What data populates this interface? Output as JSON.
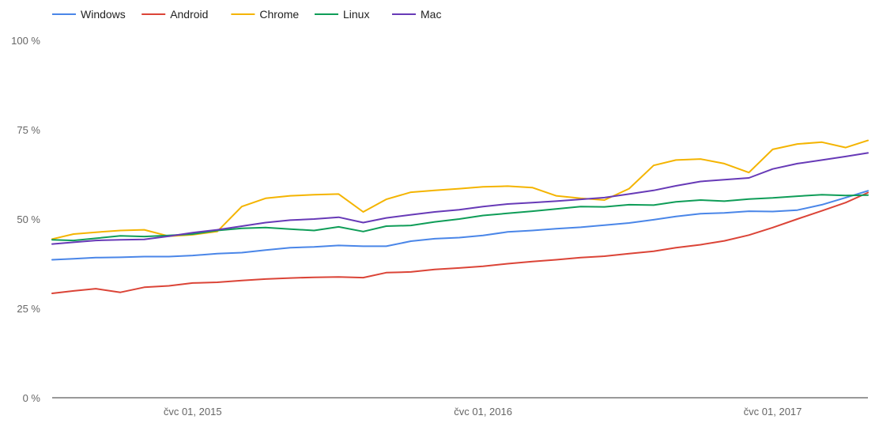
{
  "chart_data": {
    "type": "line",
    "title": "",
    "xlabel": "",
    "ylabel": "",
    "ylim": [
      0,
      100
    ],
    "y_ticks": [
      "0 %",
      "25 %",
      "50 %",
      "75 %",
      "100 %"
    ],
    "y_tick_values": [
      0,
      25,
      50,
      75,
      100
    ],
    "x_range": [
      "2015-01-05",
      "2017-10-29"
    ],
    "x_ticks": [
      {
        "label": "čvc 01, 2015",
        "date": "2015-07-01"
      },
      {
        "label": "čvc 01, 2016",
        "date": "2016-07-01"
      },
      {
        "label": "čvc 01, 2017",
        "date": "2017-07-01"
      }
    ],
    "grid": false,
    "legend_position": "top-left",
    "series": [
      {
        "name": "Windows",
        "color": "#4a86e8",
        "points": [
          [
            "2015-01-05",
            38.6
          ],
          [
            "2015-02-01",
            38.9
          ],
          [
            "2015-03-01",
            39.2
          ],
          [
            "2015-04-01",
            39.3
          ],
          [
            "2015-05-01",
            39.5
          ],
          [
            "2015-06-01",
            39.5
          ],
          [
            "2015-07-01",
            39.8
          ],
          [
            "2015-08-01",
            40.3
          ],
          [
            "2015-09-01",
            40.6
          ],
          [
            "2015-10-01",
            41.3
          ],
          [
            "2015-11-01",
            42.0
          ],
          [
            "2015-12-01",
            42.2
          ],
          [
            "2016-01-01",
            42.6
          ],
          [
            "2016-02-01",
            42.4
          ],
          [
            "2016-03-01",
            42.4
          ],
          [
            "2016-04-01",
            43.8
          ],
          [
            "2016-05-01",
            44.5
          ],
          [
            "2016-06-01",
            44.8
          ],
          [
            "2016-07-01",
            45.4
          ],
          [
            "2016-08-01",
            46.4
          ],
          [
            "2016-09-01",
            46.8
          ],
          [
            "2016-10-01",
            47.3
          ],
          [
            "2016-11-01",
            47.7
          ],
          [
            "2016-12-01",
            48.3
          ],
          [
            "2017-01-01",
            48.9
          ],
          [
            "2017-02-01",
            49.8
          ],
          [
            "2017-03-01",
            50.7
          ],
          [
            "2017-04-01",
            51.5
          ],
          [
            "2017-05-01",
            51.7
          ],
          [
            "2017-06-01",
            52.2
          ],
          [
            "2017-07-01",
            52.1
          ],
          [
            "2017-08-01",
            52.5
          ],
          [
            "2017-09-01",
            54.0
          ],
          [
            "2017-10-01",
            56.0
          ],
          [
            "2017-10-29",
            57.9
          ]
        ]
      },
      {
        "name": "Android",
        "color": "#db4437",
        "points": [
          [
            "2015-01-05",
            29.2
          ],
          [
            "2015-02-01",
            29.9
          ],
          [
            "2015-03-01",
            30.5
          ],
          [
            "2015-04-01",
            29.5
          ],
          [
            "2015-05-01",
            30.9
          ],
          [
            "2015-06-01",
            31.3
          ],
          [
            "2015-07-01",
            32.1
          ],
          [
            "2015-08-01",
            32.3
          ],
          [
            "2015-09-01",
            32.8
          ],
          [
            "2015-10-01",
            33.2
          ],
          [
            "2015-11-01",
            33.5
          ],
          [
            "2015-12-01",
            33.7
          ],
          [
            "2016-01-01",
            33.8
          ],
          [
            "2016-02-01",
            33.6
          ],
          [
            "2016-03-01",
            35.0
          ],
          [
            "2016-04-01",
            35.2
          ],
          [
            "2016-05-01",
            35.9
          ],
          [
            "2016-06-01",
            36.3
          ],
          [
            "2016-07-01",
            36.8
          ],
          [
            "2016-08-01",
            37.5
          ],
          [
            "2016-09-01",
            38.1
          ],
          [
            "2016-10-01",
            38.6
          ],
          [
            "2016-11-01",
            39.2
          ],
          [
            "2016-12-01",
            39.6
          ],
          [
            "2017-01-01",
            40.3
          ],
          [
            "2017-02-01",
            41.0
          ],
          [
            "2017-03-01",
            42.0
          ],
          [
            "2017-04-01",
            42.8
          ],
          [
            "2017-05-01",
            43.9
          ],
          [
            "2017-06-01",
            45.5
          ],
          [
            "2017-07-01",
            47.6
          ],
          [
            "2017-08-01",
            50.0
          ],
          [
            "2017-09-01",
            52.3
          ],
          [
            "2017-10-01",
            54.6
          ],
          [
            "2017-10-29",
            57.4
          ]
        ]
      },
      {
        "name": "Chrome",
        "color": "#f4b400",
        "points": [
          [
            "2015-01-05",
            44.4
          ],
          [
            "2015-02-01",
            45.8
          ],
          [
            "2015-03-01",
            46.3
          ],
          [
            "2015-04-01",
            46.8
          ],
          [
            "2015-05-01",
            47.0
          ],
          [
            "2015-06-01",
            45.2
          ],
          [
            "2015-07-01",
            45.6
          ],
          [
            "2015-08-01",
            46.5
          ],
          [
            "2015-09-01",
            53.5
          ],
          [
            "2015-10-01",
            55.8
          ],
          [
            "2015-11-01",
            56.5
          ],
          [
            "2015-12-01",
            56.8
          ],
          [
            "2016-01-01",
            57.0
          ],
          [
            "2016-02-01",
            52.0
          ],
          [
            "2016-03-01",
            55.5
          ],
          [
            "2016-04-01",
            57.5
          ],
          [
            "2016-05-01",
            58.0
          ],
          [
            "2016-06-01",
            58.5
          ],
          [
            "2016-07-01",
            59.0
          ],
          [
            "2016-08-01",
            59.2
          ],
          [
            "2016-09-01",
            58.8
          ],
          [
            "2016-10-01",
            56.5
          ],
          [
            "2016-11-01",
            55.8
          ],
          [
            "2016-12-01",
            55.3
          ],
          [
            "2017-01-01",
            58.5
          ],
          [
            "2017-02-01",
            65.0
          ],
          [
            "2017-03-01",
            66.5
          ],
          [
            "2017-04-01",
            66.8
          ],
          [
            "2017-05-01",
            65.5
          ],
          [
            "2017-06-01",
            63.0
          ],
          [
            "2017-07-01",
            69.5
          ],
          [
            "2017-08-01",
            71.0
          ],
          [
            "2017-09-01",
            71.5
          ],
          [
            "2017-10-01",
            70.0
          ],
          [
            "2017-10-29",
            72.0
          ]
        ]
      },
      {
        "name": "Linux",
        "color": "#0f9d58",
        "points": [
          [
            "2015-01-05",
            44.2
          ],
          [
            "2015-02-01",
            44.0
          ],
          [
            "2015-03-01",
            44.6
          ],
          [
            "2015-04-01",
            45.3
          ],
          [
            "2015-05-01",
            45.1
          ],
          [
            "2015-06-01",
            45.4
          ],
          [
            "2015-07-01",
            45.8
          ],
          [
            "2015-08-01",
            46.8
          ],
          [
            "2015-09-01",
            47.4
          ],
          [
            "2015-10-01",
            47.6
          ],
          [
            "2015-11-01",
            47.2
          ],
          [
            "2015-12-01",
            46.8
          ],
          [
            "2016-01-01",
            47.8
          ],
          [
            "2016-02-01",
            46.5
          ],
          [
            "2016-03-01",
            48.0
          ],
          [
            "2016-04-01",
            48.2
          ],
          [
            "2016-05-01",
            49.2
          ],
          [
            "2016-06-01",
            50.0
          ],
          [
            "2016-07-01",
            51.0
          ],
          [
            "2016-08-01",
            51.6
          ],
          [
            "2016-09-01",
            52.2
          ],
          [
            "2016-10-01",
            52.8
          ],
          [
            "2016-11-01",
            53.5
          ],
          [
            "2016-12-01",
            53.4
          ],
          [
            "2017-01-01",
            54.0
          ],
          [
            "2017-02-01",
            53.9
          ],
          [
            "2017-03-01",
            54.8
          ],
          [
            "2017-04-01",
            55.3
          ],
          [
            "2017-05-01",
            55.0
          ],
          [
            "2017-06-01",
            55.6
          ],
          [
            "2017-07-01",
            55.9
          ],
          [
            "2017-08-01",
            56.4
          ],
          [
            "2017-09-01",
            56.8
          ],
          [
            "2017-10-01",
            56.6
          ],
          [
            "2017-10-29",
            56.7
          ]
        ]
      },
      {
        "name": "Mac",
        "color": "#673ab7",
        "points": [
          [
            "2015-01-05",
            43.0
          ],
          [
            "2015-02-01",
            43.5
          ],
          [
            "2015-03-01",
            44.0
          ],
          [
            "2015-04-01",
            44.2
          ],
          [
            "2015-05-01",
            44.3
          ],
          [
            "2015-06-01",
            45.2
          ],
          [
            "2015-07-01",
            46.2
          ],
          [
            "2015-08-01",
            47.0
          ],
          [
            "2015-09-01",
            48.0
          ],
          [
            "2015-10-01",
            49.0
          ],
          [
            "2015-11-01",
            49.7
          ],
          [
            "2015-12-01",
            50.0
          ],
          [
            "2016-01-01",
            50.5
          ],
          [
            "2016-02-01",
            49.0
          ],
          [
            "2016-03-01",
            50.3
          ],
          [
            "2016-04-01",
            51.2
          ],
          [
            "2016-05-01",
            52.0
          ],
          [
            "2016-06-01",
            52.6
          ],
          [
            "2016-07-01",
            53.5
          ],
          [
            "2016-08-01",
            54.2
          ],
          [
            "2016-09-01",
            54.6
          ],
          [
            "2016-10-01",
            55.0
          ],
          [
            "2016-11-01",
            55.5
          ],
          [
            "2016-12-01",
            56.0
          ],
          [
            "2017-01-01",
            57.0
          ],
          [
            "2017-02-01",
            58.0
          ],
          [
            "2017-03-01",
            59.3
          ],
          [
            "2017-04-01",
            60.5
          ],
          [
            "2017-05-01",
            61.0
          ],
          [
            "2017-06-01",
            61.5
          ],
          [
            "2017-07-01",
            64.0
          ],
          [
            "2017-08-01",
            65.5
          ],
          [
            "2017-09-01",
            66.5
          ],
          [
            "2017-10-01",
            67.5
          ],
          [
            "2017-10-29",
            68.5
          ]
        ]
      }
    ]
  },
  "style": {
    "axis_color": "#333333",
    "tick_label_color": "#666666",
    "background": "#ffffff"
  }
}
